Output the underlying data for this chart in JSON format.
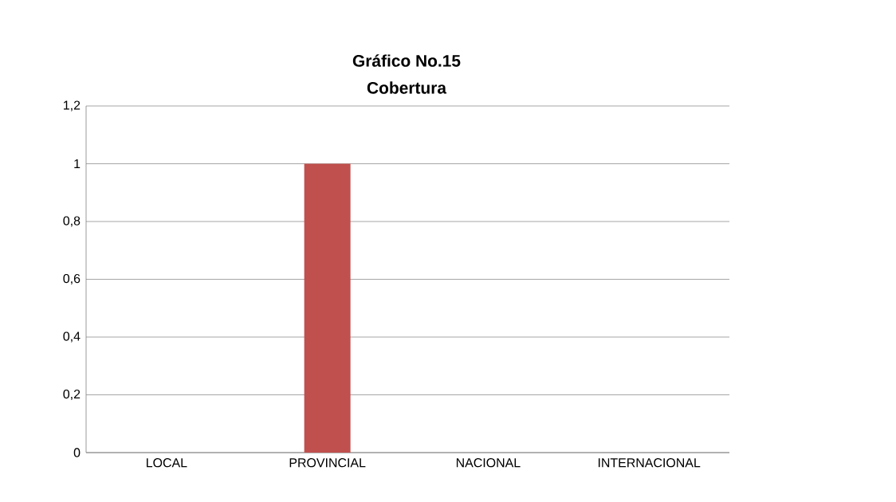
{
  "chart_data": {
    "type": "bar",
    "title": "Gráfico No.15",
    "subtitle": "Cobertura",
    "categories": [
      "LOCAL",
      "PROVINCIAL",
      "NACIONAL",
      "INTERNACIONAL"
    ],
    "values": [
      0,
      1,
      0,
      0
    ],
    "color": "#c0504d",
    "ylim": [
      0,
      1.2
    ],
    "yticks": [
      0,
      {
        "value": 0.2,
        "label": "0,2"
      },
      {
        "value": 0.4,
        "label": "0,4"
      },
      {
        "value": 0.6,
        "label": "0,6"
      },
      {
        "value": 0.8,
        "label": "0,8"
      },
      1,
      {
        "value": 1.2,
        "label": "1,2"
      }
    ],
    "grid": "y"
  }
}
